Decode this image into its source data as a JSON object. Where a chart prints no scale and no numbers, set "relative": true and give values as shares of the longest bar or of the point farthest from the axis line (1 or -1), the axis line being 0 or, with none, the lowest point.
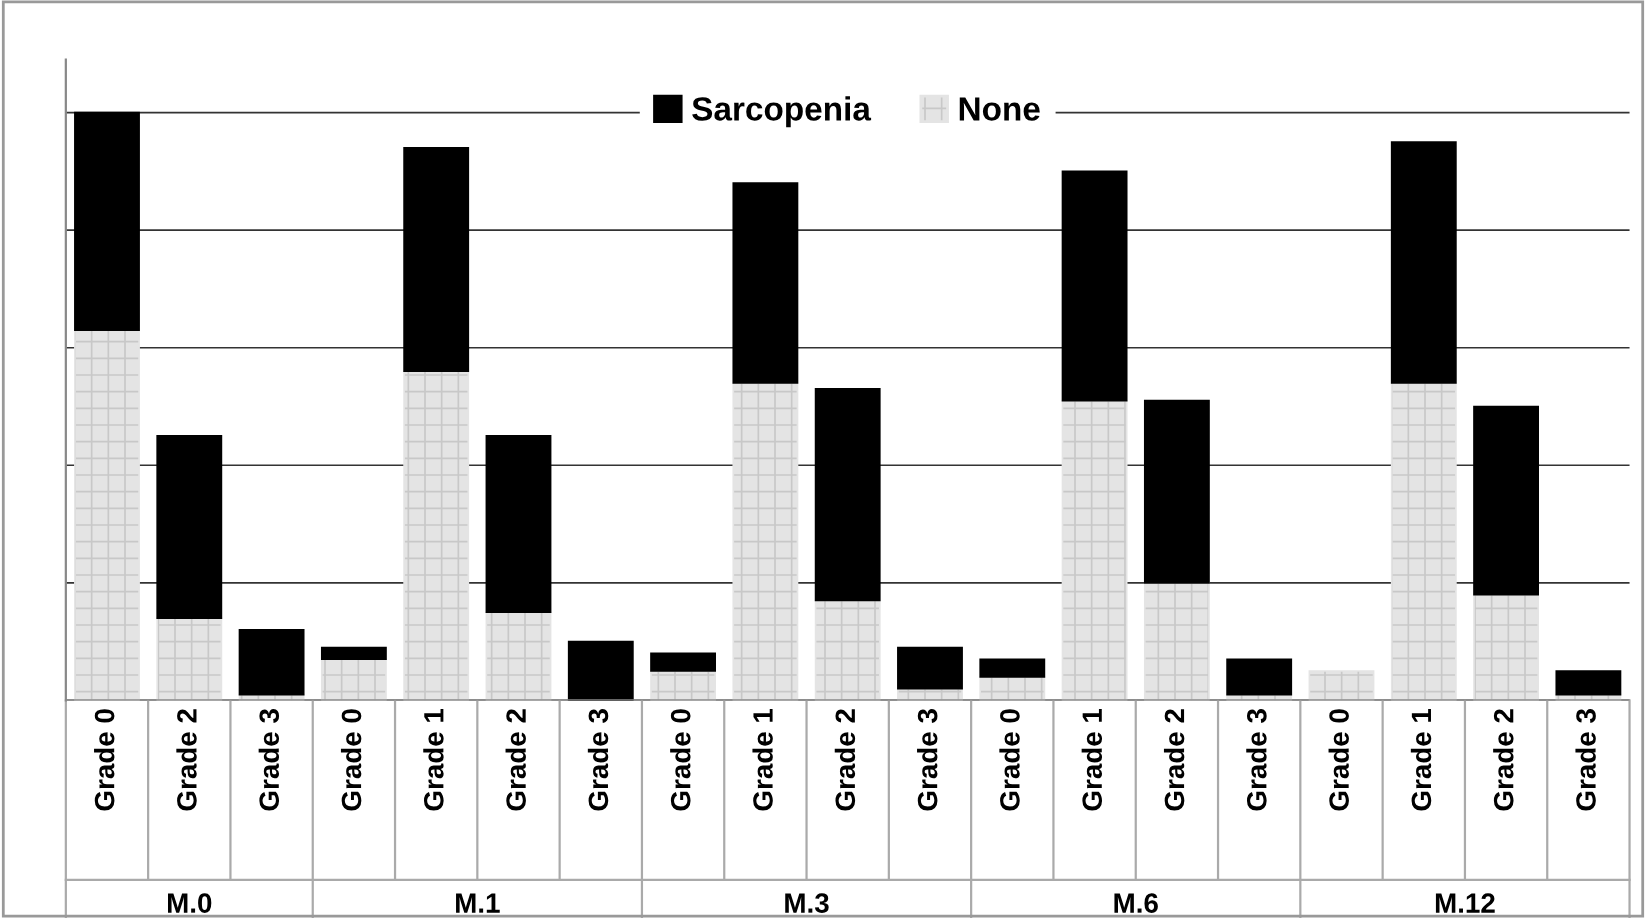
{
  "chart_data": {
    "type": "bar",
    "stacked": true,
    "relative": true,
    "grid": "y",
    "legend": "top",
    "categories": [
      "Grade 0",
      "Grade 2",
      "Grade 3",
      "Grade 0",
      "Grade 1",
      "Grade 2",
      "Grade 3",
      "Grade 0",
      "Grade 1",
      "Grade 2",
      "Grade 3",
      "Grade 0",
      "Grade 1",
      "Grade 2",
      "Grade 3",
      "Grade 0",
      "Grade 1",
      "Grade 2",
      "Grade 3"
    ],
    "series": [
      {
        "name": "None",
        "color": "#e4e4e4",
        "values": [
          0.63,
          0.14,
          0.01,
          0.07,
          0.56,
          0.15,
          0,
          0.05,
          0.54,
          0.17,
          0.02,
          0.04,
          0.51,
          0.2,
          0.01,
          0.05,
          0.54,
          0.18,
          0.01
        ]
      },
      {
        "name": "Sarcopenia",
        "color": "#000000",
        "values": [
          0.37,
          0.31,
          0.11,
          0.02,
          0.38,
          0.3,
          0.1,
          0.03,
          0.34,
          0.36,
          0.07,
          0.03,
          0.39,
          0.31,
          0.06,
          0,
          0.41,
          0.32,
          0.04
        ]
      }
    ],
    "annotations": [
      "M.0",
      "M.1",
      "M.3",
      "M.6",
      "M.12"
    ]
  }
}
